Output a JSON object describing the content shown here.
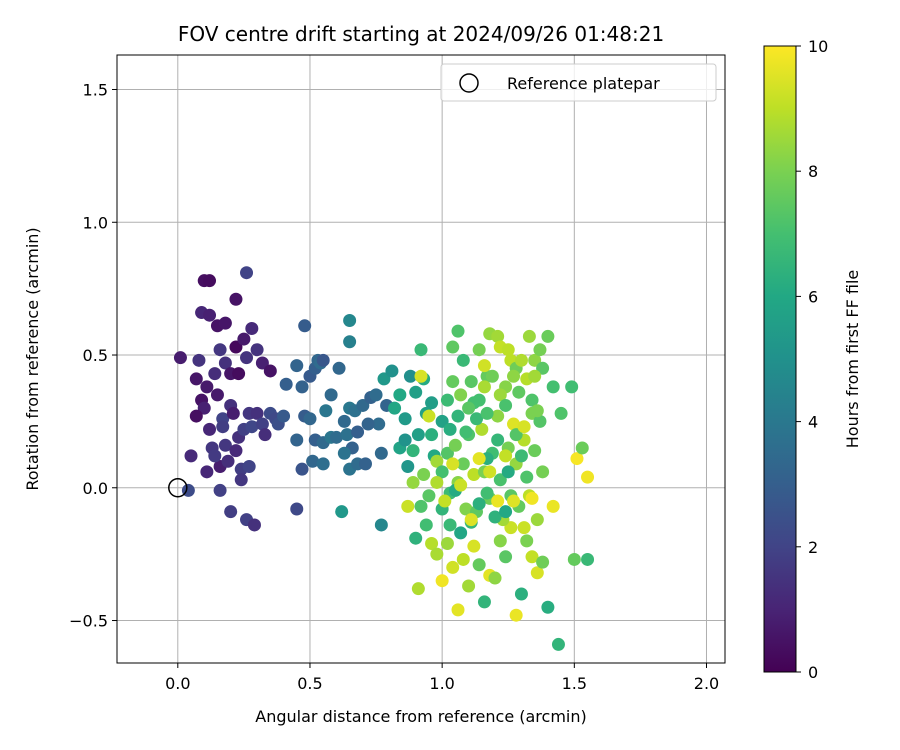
{
  "chart_data": {
    "type": "scatter",
    "title": "FOV centre drift starting at 2024/09/26 01:48:21",
    "xlabel": "Angular distance from reference (arcmin)",
    "ylabel": "Rotation from reference (arcmin)",
    "xlim": [
      -0.23,
      2.07
    ],
    "ylim": [
      -0.66,
      1.63
    ],
    "xticks": [
      0.0,
      0.5,
      1.0,
      1.5,
      2.0
    ],
    "xtick_labels": [
      "0.0",
      "0.5",
      "1.0",
      "1.5",
      "2.0"
    ],
    "yticks": [
      -0.5,
      0.0,
      0.5,
      1.0,
      1.5
    ],
    "ytick_labels": [
      "−0.5",
      "0.0",
      "0.5",
      "1.0",
      "1.5"
    ],
    "grid": true,
    "legend": {
      "position": "top-right",
      "entries": [
        "Reference platepar"
      ]
    },
    "reference_point": {
      "name": "Reference platepar",
      "x": 0.0,
      "y": 0.0
    },
    "colorbar": {
      "label": "Hours from first FF file",
      "range": [
        0,
        10
      ],
      "ticks": [
        0,
        2,
        4,
        6,
        8,
        10
      ],
      "tick_labels": [
        "0",
        "2",
        "4",
        "6",
        "8",
        "10"
      ],
      "colormap": "viridis"
    },
    "points": [
      [
        0.01,
        0.49,
        0.8
      ],
      [
        0.05,
        0.12,
        1.2
      ],
      [
        0.04,
        -0.01,
        2.3
      ],
      [
        0.07,
        0.41,
        0.6
      ],
      [
        0.09,
        0.66,
        1.1
      ],
      [
        0.1,
        0.78,
        0.4
      ],
      [
        0.12,
        0.78,
        0.3
      ],
      [
        0.12,
        0.65,
        0.9
      ],
      [
        0.08,
        0.48,
        1.5
      ],
      [
        0.11,
        0.38,
        0.7
      ],
      [
        0.09,
        0.33,
        0.5
      ],
      [
        0.14,
        0.43,
        1.3
      ],
      [
        0.15,
        0.61,
        0.5
      ],
      [
        0.16,
        0.52,
        1.6
      ],
      [
        0.18,
        0.62,
        0.6
      ],
      [
        0.22,
        0.53,
        0.2
      ],
      [
        0.22,
        0.71,
        0.5
      ],
      [
        0.26,
        0.81,
        2.0
      ],
      [
        0.28,
        0.6,
        1.2
      ],
      [
        0.17,
        0.26,
        2.0
      ],
      [
        0.1,
        0.3,
        0.9
      ],
      [
        0.07,
        0.27,
        0.4
      ],
      [
        0.18,
        0.47,
        1.4
      ],
      [
        0.2,
        0.43,
        0.6
      ],
      [
        0.23,
        0.43,
        0.3
      ],
      [
        0.25,
        0.56,
        0.7
      ],
      [
        0.26,
        0.49,
        1.5
      ],
      [
        0.3,
        0.52,
        1.5
      ],
      [
        0.32,
        0.47,
        0.9
      ],
      [
        0.35,
        0.44,
        0.5
      ],
      [
        0.13,
        0.15,
        1.6
      ],
      [
        0.17,
        0.23,
        1.8
      ],
      [
        0.2,
        0.31,
        1.4
      ],
      [
        0.15,
        0.35,
        0.7
      ],
      [
        0.12,
        0.22,
        1.1
      ],
      [
        0.16,
        0.08,
        0.8
      ],
      [
        0.19,
        0.1,
        1.3
      ],
      [
        0.11,
        0.06,
        1.1
      ],
      [
        0.14,
        0.12,
        1.7
      ],
      [
        0.18,
        0.16,
        1.6
      ],
      [
        0.22,
        0.14,
        1.2
      ],
      [
        0.21,
        0.28,
        0.8
      ],
      [
        0.23,
        0.19,
        1.4
      ],
      [
        0.25,
        0.22,
        1.9
      ],
      [
        0.27,
        0.28,
        1.6
      ],
      [
        0.28,
        0.23,
        2.1
      ],
      [
        0.3,
        0.28,
        1.4
      ],
      [
        0.32,
        0.24,
        1.9
      ],
      [
        0.33,
        0.2,
        1.3
      ],
      [
        0.35,
        0.28,
        2.3
      ],
      [
        0.37,
        0.26,
        2.2
      ],
      [
        0.38,
        0.24,
        2.4
      ],
      [
        0.4,
        0.27,
        2.8
      ],
      [
        0.24,
        0.07,
        1.8
      ],
      [
        0.27,
        0.08,
        2.0
      ],
      [
        0.24,
        0.03,
        1.6
      ],
      [
        0.16,
        -0.01,
        1.9
      ],
      [
        0.2,
        -0.09,
        1.8
      ],
      [
        0.26,
        -0.12,
        1.9
      ],
      [
        0.29,
        -0.14,
        1.4
      ],
      [
        0.45,
        -0.08,
        2.2
      ],
      [
        0.41,
        0.39,
        3.0
      ],
      [
        0.45,
        0.46,
        3.2
      ],
      [
        0.47,
        0.38,
        3.1
      ],
      [
        0.48,
        0.61,
        2.9
      ],
      [
        0.5,
        0.42,
        2.8
      ],
      [
        0.52,
        0.45,
        3.0
      ],
      [
        0.53,
        0.48,
        3.3
      ],
      [
        0.54,
        0.47,
        3.5
      ],
      [
        0.55,
        0.48,
        2.7
      ],
      [
        0.58,
        0.35,
        3.4
      ],
      [
        0.61,
        0.45,
        3.3
      ],
      [
        0.65,
        0.63,
        4.6
      ],
      [
        0.65,
        0.55,
        4.3
      ],
      [
        0.65,
        0.3,
        4.0
      ],
      [
        0.67,
        0.29,
        3.7
      ],
      [
        0.7,
        0.31,
        3.4
      ],
      [
        0.73,
        0.34,
        3.1
      ],
      [
        0.75,
        0.35,
        3.5
      ],
      [
        0.76,
        0.24,
        3.5
      ],
      [
        0.79,
        0.31,
        3.2
      ],
      [
        0.45,
        0.18,
        3.2
      ],
      [
        0.48,
        0.27,
        2.9
      ],
      [
        0.5,
        0.26,
        3.3
      ],
      [
        0.52,
        0.18,
        3.0
      ],
      [
        0.55,
        0.17,
        3.4
      ],
      [
        0.56,
        0.29,
        3.9
      ],
      [
        0.58,
        0.19,
        3.9
      ],
      [
        0.6,
        0.19,
        3.5
      ],
      [
        0.63,
        0.25,
        3.4
      ],
      [
        0.64,
        0.2,
        3.7
      ],
      [
        0.66,
        0.15,
        3.1
      ],
      [
        0.68,
        0.21,
        3.0
      ],
      [
        0.72,
        0.24,
        3.2
      ],
      [
        0.47,
        0.07,
        2.6
      ],
      [
        0.51,
        0.1,
        3.3
      ],
      [
        0.55,
        0.09,
        3.6
      ],
      [
        0.63,
        0.13,
        3.8
      ],
      [
        0.65,
        0.07,
        3.8
      ],
      [
        0.68,
        0.09,
        3.5
      ],
      [
        0.71,
        0.09,
        3.1
      ],
      [
        0.77,
        0.13,
        3.4
      ],
      [
        0.62,
        -0.09,
        5.3
      ],
      [
        0.77,
        -0.14,
        4.6
      ],
      [
        0.78,
        0.41,
        5.3
      ],
      [
        0.81,
        0.44,
        5.0
      ],
      [
        0.82,
        0.3,
        5.9
      ],
      [
        0.84,
        0.35,
        6.0
      ],
      [
        0.86,
        0.26,
        5.4
      ],
      [
        0.88,
        0.42,
        4.9
      ],
      [
        0.9,
        0.36,
        5.6
      ],
      [
        0.92,
        0.52,
        6.7
      ],
      [
        0.93,
        0.41,
        6.1
      ],
      [
        0.96,
        0.32,
        5.5
      ],
      [
        0.84,
        0.15,
        5.8
      ],
      [
        0.86,
        0.18,
        5.1
      ],
      [
        0.87,
        0.08,
        5.2
      ],
      [
        0.89,
        0.14,
        6.5
      ],
      [
        0.91,
        0.2,
        5.6
      ],
      [
        0.94,
        0.28,
        5.7
      ],
      [
        0.96,
        0.2,
        6.3
      ],
      [
        0.97,
        0.12,
        6.0
      ],
      [
        1.0,
        0.25,
        5.7
      ],
      [
        1.02,
        0.33,
        6.8
      ],
      [
        1.04,
        0.53,
        7.5
      ],
      [
        1.06,
        0.59,
        7.2
      ],
      [
        1.08,
        0.48,
        6.7
      ],
      [
        1.11,
        0.4,
        7.4
      ],
      [
        1.12,
        0.32,
        7.0
      ],
      [
        1.14,
        0.52,
        7.9
      ],
      [
        1.17,
        0.42,
        7.6
      ],
      [
        1.18,
        0.58,
        8.4
      ],
      [
        1.21,
        0.57,
        8.6
      ],
      [
        1.22,
        0.53,
        9.1
      ],
      [
        1.24,
        0.38,
        8.2
      ],
      [
        1.26,
        0.48,
        9.0
      ],
      [
        1.28,
        0.45,
        7.8
      ],
      [
        1.3,
        0.48,
        8.8
      ],
      [
        1.33,
        0.57,
        8.5
      ],
      [
        1.35,
        0.48,
        8.3
      ],
      [
        1.37,
        0.52,
        7.9
      ],
      [
        1.4,
        0.57,
        7.7
      ],
      [
        1.42,
        0.38,
        7.0
      ],
      [
        1.45,
        0.28,
        7.2
      ],
      [
        1.49,
        0.38,
        6.9
      ],
      [
        0.87,
        -0.07,
        9.2
      ],
      [
        0.9,
        -0.19,
        6.4
      ],
      [
        0.92,
        -0.07,
        7.2
      ],
      [
        0.94,
        -0.14,
        6.9
      ],
      [
        0.96,
        -0.21,
        8.9
      ],
      [
        0.98,
        -0.25,
        8.7
      ],
      [
        1.0,
        -0.35,
        9.8
      ],
      [
        1.02,
        -0.21,
        8.5
      ],
      [
        1.04,
        -0.3,
        9.3
      ],
      [
        1.06,
        -0.46,
        9.6
      ],
      [
        1.08,
        -0.27,
        9.0
      ],
      [
        1.1,
        -0.37,
        8.6
      ],
      [
        1.12,
        -0.22,
        9.4
      ],
      [
        1.14,
        -0.29,
        7.6
      ],
      [
        1.16,
        -0.43,
        6.5
      ],
      [
        1.18,
        -0.33,
        9.6
      ],
      [
        1.2,
        -0.34,
        8.3
      ],
      [
        1.22,
        -0.2,
        8.2
      ],
      [
        1.24,
        -0.26,
        7.4
      ],
      [
        1.26,
        -0.15,
        9.2
      ],
      [
        1.28,
        -0.48,
        9.7
      ],
      [
        1.3,
        -0.4,
        6.3
      ],
      [
        1.32,
        -0.2,
        8.0
      ],
      [
        1.34,
        -0.26,
        9.1
      ],
      [
        1.36,
        -0.32,
        9.4
      ],
      [
        1.38,
        -0.28,
        7.8
      ],
      [
        1.4,
        -0.45,
        6.2
      ],
      [
        1.42,
        -0.07,
        9.7
      ],
      [
        1.44,
        -0.59,
        6.5
      ],
      [
        1.5,
        -0.27,
        7.6
      ],
      [
        1.55,
        -0.27,
        6.7
      ],
      [
        1.51,
        0.11,
        9.9
      ],
      [
        1.55,
        0.04,
        9.8
      ],
      [
        1.53,
        0.15,
        7.7
      ],
      [
        0.91,
        -0.38,
        8.8
      ],
      [
        0.89,
        0.02,
        8.4
      ],
      [
        0.93,
        0.05,
        8.0
      ],
      [
        0.95,
        -0.03,
        7.4
      ],
      [
        0.98,
        0.1,
        8.6
      ],
      [
        1.0,
        0.06,
        7.0
      ],
      [
        1.02,
        0.13,
        7.3
      ],
      [
        1.03,
        -0.02,
        6.8
      ],
      [
        1.05,
        0.16,
        7.9
      ],
      [
        1.06,
        0.02,
        8.2
      ],
      [
        1.08,
        0.09,
        7.7
      ],
      [
        1.09,
        -0.08,
        8.1
      ],
      [
        1.1,
        0.2,
        7.2
      ],
      [
        1.12,
        0.05,
        9.0
      ],
      [
        1.13,
        -0.09,
        7.5
      ],
      [
        1.15,
        0.22,
        8.8
      ],
      [
        1.16,
        0.06,
        8.0
      ],
      [
        1.18,
        -0.04,
        7.8
      ],
      [
        1.19,
        0.13,
        6.9
      ],
      [
        1.21,
        0.27,
        8.3
      ],
      [
        1.22,
        0.03,
        7.1
      ],
      [
        1.23,
        -0.12,
        8.6
      ],
      [
        1.25,
        0.15,
        7.9
      ],
      [
        1.26,
        -0.03,
        7.4
      ],
      [
        1.27,
        0.24,
        9.5
      ],
      [
        1.28,
        0.09,
        8.4
      ],
      [
        1.29,
        -0.07,
        7.6
      ],
      [
        1.31,
        0.18,
        8.9
      ],
      [
        1.32,
        0.04,
        7.2
      ],
      [
        1.33,
        -0.03,
        9.0
      ],
      [
        1.34,
        0.28,
        8.0
      ],
      [
        1.35,
        0.14,
        7.7
      ],
      [
        1.36,
        -0.12,
        8.5
      ],
      [
        1.37,
        0.25,
        7.3
      ],
      [
        1.38,
        0.06,
        7.9
      ],
      [
        1.04,
        0.4,
        7.6
      ],
      [
        1.07,
        0.35,
        8.1
      ],
      [
        1.1,
        0.3,
        7.4
      ],
      [
        1.14,
        0.33,
        7.0
      ],
      [
        1.16,
        0.38,
        8.7
      ],
      [
        1.19,
        0.42,
        7.8
      ],
      [
        1.22,
        0.35,
        8.5
      ],
      [
        1.24,
        0.31,
        7.1
      ],
      [
        1.27,
        0.42,
        8.3
      ],
      [
        1.29,
        0.36,
        7.5
      ],
      [
        1.32,
        0.41,
        8.9
      ],
      [
        1.34,
        0.33,
        7.2
      ],
      [
        1.36,
        0.29,
        8.0
      ],
      [
        1.38,
        0.45,
        7.4
      ],
      [
        1.0,
        -0.08,
        6.5
      ],
      [
        1.03,
        -0.14,
        6.7
      ],
      [
        1.05,
        -0.01,
        6.1
      ],
      [
        1.07,
        -0.17,
        5.9
      ],
      [
        1.11,
        -0.13,
        6.6
      ],
      [
        1.14,
        -0.06,
        6.3
      ],
      [
        1.17,
        -0.02,
        6.9
      ],
      [
        1.2,
        -0.11,
        6.4
      ],
      [
        1.24,
        -0.09,
        6.0
      ],
      [
        1.03,
        0.22,
        6.2
      ],
      [
        1.06,
        0.27,
        6.5
      ],
      [
        1.09,
        0.21,
        6.9
      ],
      [
        1.13,
        0.26,
        6.7
      ],
      [
        1.17,
        0.11,
        6.3
      ],
      [
        1.21,
        0.18,
        6.6
      ],
      [
        1.25,
        0.06,
        6.1
      ],
      [
        1.3,
        0.12,
        6.8
      ],
      [
        1.17,
        0.28,
        7.1
      ],
      [
        1.28,
        0.2,
        7.3
      ],
      [
        0.98,
        0.02,
        8.8
      ],
      [
        1.01,
        -0.05,
        9.1
      ],
      [
        1.04,
        0.09,
        9.4
      ],
      [
        1.07,
        0.01,
        9.2
      ],
      [
        1.11,
        -0.12,
        9.5
      ],
      [
        1.14,
        0.11,
        9.6
      ],
      [
        1.18,
        0.06,
        9.3
      ],
      [
        1.21,
        -0.05,
        9.7
      ],
      [
        1.24,
        0.12,
        9.1
      ],
      [
        1.27,
        -0.05,
        9.5
      ],
      [
        1.31,
        0.23,
        9.4
      ],
      [
        1.34,
        -0.04,
        9.8
      ],
      [
        1.31,
        -0.15,
        9.2
      ],
      [
        0.92,
        0.42,
        9.4
      ],
      [
        0.95,
        0.27,
        9.2
      ],
      [
        1.16,
        0.46,
        9.3
      ],
      [
        1.25,
        0.52,
        9.0
      ],
      [
        1.35,
        0.42,
        8.6
      ]
    ]
  }
}
